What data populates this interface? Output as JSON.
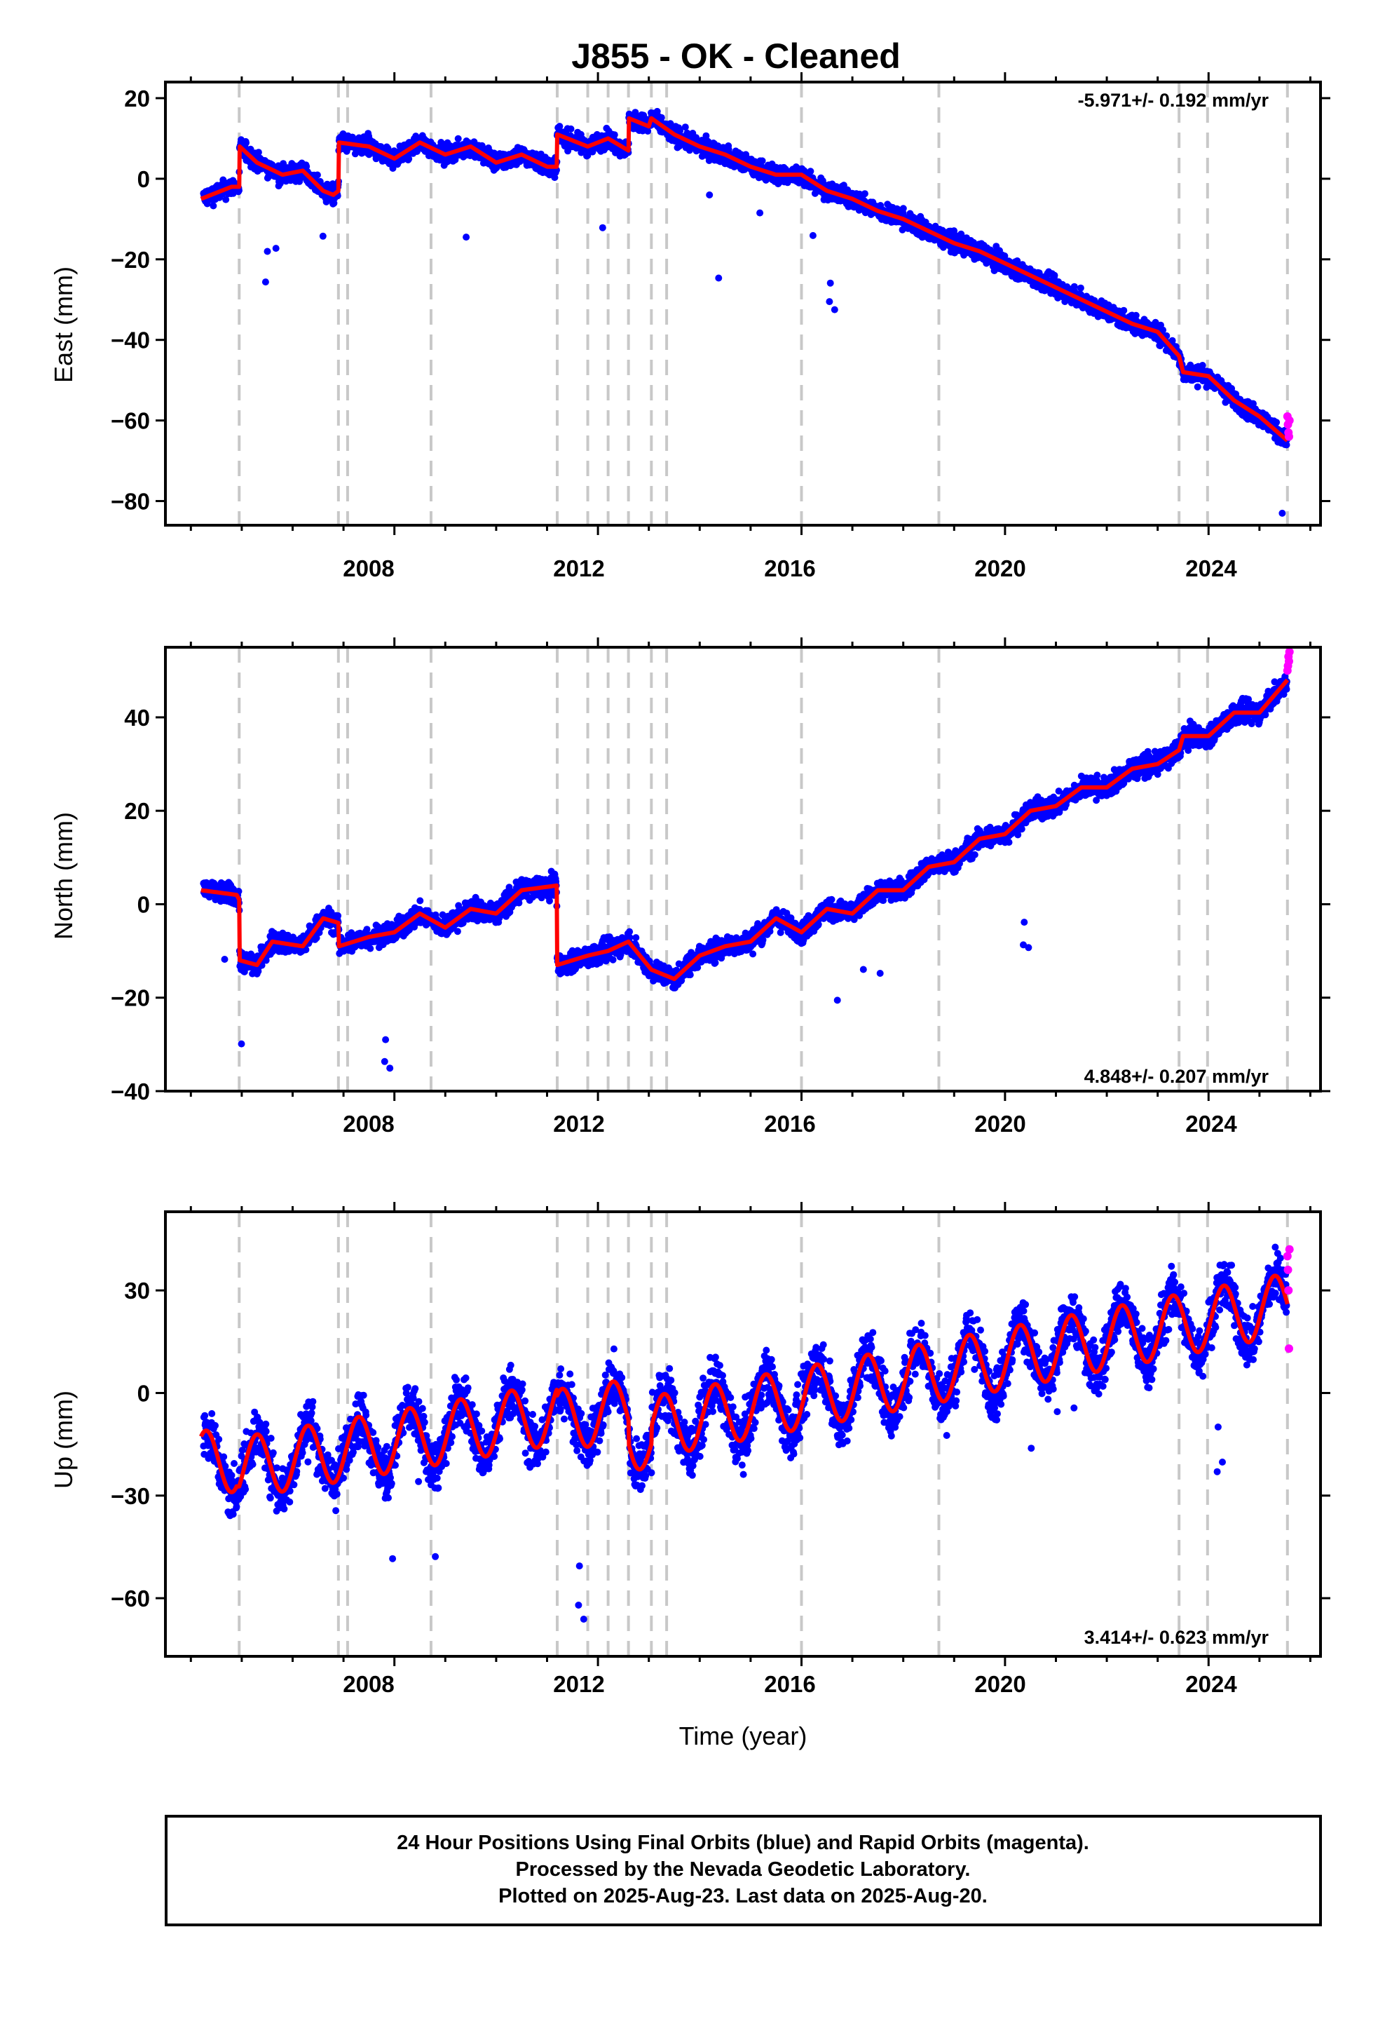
{
  "title": "J855  - OK - Cleaned",
  "colors": {
    "final": "#0000ff",
    "rapid": "#ff00ff",
    "model": "#ff0000",
    "event": "#c8c8c8",
    "axis": "#000000"
  },
  "x_ticks": [
    "2008",
    "2012",
    "2016",
    "2020",
    "2024"
  ],
  "x_label": "Time (year)",
  "chart_data": [
    {
      "type": "scatter",
      "ylabel": "East (mm)",
      "rate": "-5.971+/- 0.192 mm/yr",
      "ylim": [
        -86,
        24
      ],
      "yticks": [
        20,
        0,
        -20,
        -40,
        -60,
        -80
      ],
      "xlim": [
        2003.5,
        2026.2
      ],
      "event_lines": [
        2004.95,
        2006.9,
        2007.08,
        2008.72,
        2011.2,
        2011.8,
        2012.2,
        2012.6,
        2013.05,
        2013.35,
        2016.0,
        2018.7,
        2023.42,
        2023.98,
        2025.55
      ],
      "model": [
        [
          2004.2,
          -5
        ],
        [
          2004.8,
          -2
        ],
        [
          2004.95,
          -2
        ],
        [
          2004.96,
          8
        ],
        [
          2005.3,
          4
        ],
        [
          2005.8,
          1
        ],
        [
          2006.2,
          2
        ],
        [
          2006.6,
          -3
        ],
        [
          2006.8,
          -4
        ],
        [
          2006.9,
          -3
        ],
        [
          2006.91,
          9
        ],
        [
          2007.5,
          8
        ],
        [
          2008.0,
          5
        ],
        [
          2008.5,
          9
        ],
        [
          2009.0,
          6
        ],
        [
          2009.5,
          8
        ],
        [
          2010.0,
          4
        ],
        [
          2010.5,
          6
        ],
        [
          2011.0,
          3
        ],
        [
          2011.19,
          3
        ],
        [
          2011.2,
          11
        ],
        [
          2011.8,
          8
        ],
        [
          2012.2,
          10
        ],
        [
          2012.6,
          7
        ],
        [
          2012.61,
          15
        ],
        [
          2013.0,
          13
        ],
        [
          2013.05,
          15
        ],
        [
          2013.5,
          11
        ],
        [
          2014.0,
          8
        ],
        [
          2014.5,
          6
        ],
        [
          2015.0,
          3
        ],
        [
          2015.5,
          1
        ],
        [
          2016.0,
          1
        ],
        [
          2016.5,
          -3
        ],
        [
          2017.0,
          -5
        ],
        [
          2017.5,
          -8
        ],
        [
          2018.0,
          -10
        ],
        [
          2018.5,
          -13
        ],
        [
          2019.0,
          -16
        ],
        [
          2019.5,
          -18
        ],
        [
          2020.0,
          -21
        ],
        [
          2020.5,
          -24
        ],
        [
          2021.0,
          -27
        ],
        [
          2021.5,
          -30
        ],
        [
          2022.0,
          -33
        ],
        [
          2022.5,
          -36
        ],
        [
          2023.0,
          -38
        ],
        [
          2023.42,
          -44
        ],
        [
          2023.5,
          -48
        ],
        [
          2024.0,
          -49
        ],
        [
          2024.5,
          -55
        ],
        [
          2025.0,
          -59
        ],
        [
          2025.55,
          -65
        ]
      ],
      "rapid_points": [
        [
          2025.55,
          -59
        ],
        [
          2025.56,
          -61
        ],
        [
          2025.57,
          -63
        ],
        [
          2025.58,
          -64
        ],
        [
          2025.59,
          -60
        ]
      ]
    },
    {
      "type": "scatter",
      "ylabel": "North (mm)",
      "rate": "4.848+/- 0.207 mm/yr",
      "ylim": [
        -40,
        55
      ],
      "yticks": [
        40,
        20,
        0,
        -20,
        -40
      ],
      "xlim": [
        2003.5,
        2026.2
      ],
      "event_lines": [
        2004.95,
        2006.9,
        2007.08,
        2008.72,
        2011.2,
        2011.8,
        2012.2,
        2012.6,
        2013.05,
        2013.35,
        2016.0,
        2018.7,
        2023.42,
        2023.98,
        2025.55
      ],
      "model": [
        [
          2004.2,
          3
        ],
        [
          2004.9,
          2
        ],
        [
          2004.95,
          1
        ],
        [
          2004.96,
          -12
        ],
        [
          2005.3,
          -13
        ],
        [
          2005.6,
          -8
        ],
        [
          2006.2,
          -9
        ],
        [
          2006.6,
          -3
        ],
        [
          2006.9,
          -4
        ],
        [
          2006.91,
          -9
        ],
        [
          2007.5,
          -7
        ],
        [
          2008.0,
          -6
        ],
        [
          2008.5,
          -2
        ],
        [
          2009.0,
          -5
        ],
        [
          2009.5,
          -1
        ],
        [
          2010.0,
          -2
        ],
        [
          2010.5,
          3
        ],
        [
          2011.19,
          4
        ],
        [
          2011.2,
          -13
        ],
        [
          2011.8,
          -11
        ],
        [
          2012.2,
          -10
        ],
        [
          2012.6,
          -8
        ],
        [
          2013.05,
          -14
        ],
        [
          2013.5,
          -16
        ],
        [
          2014.0,
          -11
        ],
        [
          2014.5,
          -9
        ],
        [
          2015.0,
          -8
        ],
        [
          2015.5,
          -3
        ],
        [
          2016.0,
          -6
        ],
        [
          2016.5,
          -1
        ],
        [
          2017.0,
          -2
        ],
        [
          2017.5,
          3
        ],
        [
          2018.0,
          3
        ],
        [
          2018.5,
          8
        ],
        [
          2019.0,
          9
        ],
        [
          2019.5,
          14
        ],
        [
          2020.0,
          15
        ],
        [
          2020.5,
          20
        ],
        [
          2021.0,
          21
        ],
        [
          2021.5,
          25
        ],
        [
          2022.0,
          25
        ],
        [
          2022.5,
          29
        ],
        [
          2023.0,
          30
        ],
        [
          2023.42,
          33
        ],
        [
          2023.5,
          36
        ],
        [
          2024.0,
          36
        ],
        [
          2024.5,
          41
        ],
        [
          2025.0,
          41
        ],
        [
          2025.55,
          48
        ]
      ],
      "rapid_points": [
        [
          2025.55,
          50
        ],
        [
          2025.56,
          51
        ],
        [
          2025.57,
          53
        ],
        [
          2025.58,
          52
        ],
        [
          2025.59,
          54
        ]
      ]
    },
    {
      "type": "scatter",
      "ylabel": "Up (mm)",
      "rate": "3.414+/- 0.623 mm/yr",
      "ylim": [
        -77,
        53
      ],
      "yticks": [
        30,
        0,
        -30,
        -60
      ],
      "xlim": [
        2003.5,
        2026.2
      ],
      "event_lines": [
        2004.95,
        2006.9,
        2007.08,
        2008.72,
        2011.2,
        2011.8,
        2012.2,
        2012.6,
        2013.05,
        2013.35,
        2016.0,
        2018.7,
        2023.42,
        2023.98,
        2025.55
      ],
      "model_base": [
        [
          2004.2,
          -20
        ],
        [
          2004.9,
          -20
        ],
        [
          2004.95,
          -22
        ],
        [
          2011.19,
          -6
        ],
        [
          2011.2,
          -8
        ],
        [
          2012.6,
          -5
        ],
        [
          2012.61,
          -12
        ],
        [
          2013.05,
          -15
        ],
        [
          2013.06,
          -10
        ],
        [
          2025.55,
          26
        ]
      ],
      "model_amplitude": 9,
      "rapid_points": [
        [
          2025.55,
          40
        ],
        [
          2025.56,
          36
        ],
        [
          2025.57,
          30
        ],
        [
          2025.58,
          13
        ],
        [
          2025.59,
          42
        ]
      ]
    }
  ],
  "footer": {
    "line1": "24 Hour Positions Using Final Orbits (blue) and Rapid Orbits (magenta).",
    "line2": "Processed by the Nevada Geodetic Laboratory.",
    "line3": "Plotted on 2025-Aug-23. Last data on 2025-Aug-20."
  }
}
